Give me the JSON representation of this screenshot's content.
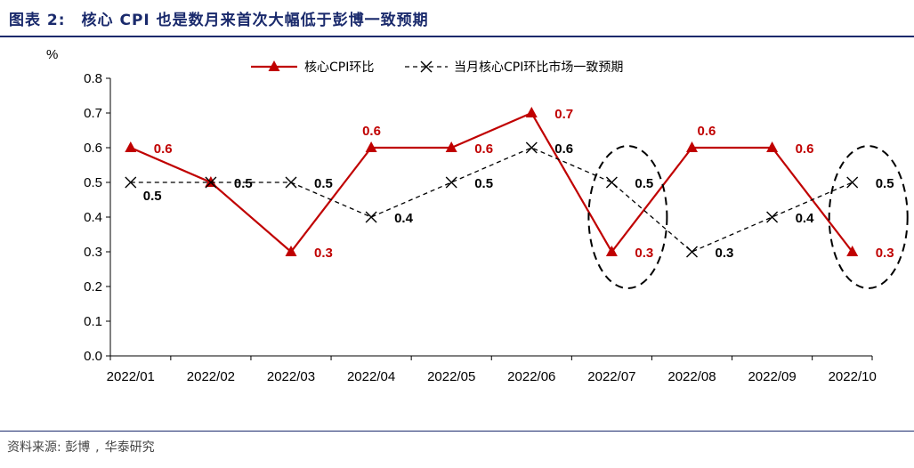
{
  "figure": {
    "number": "图表 2:",
    "title": "核心 CPI 也是数月来首次大幅低于彭博一致预期",
    "source_label": "资料来源:",
    "source_items": [
      "彭博",
      "华泰研究"
    ]
  },
  "colors": {
    "actual": "#c00000",
    "expected": "#000000",
    "header": "#1a2a6c",
    "ellipse": "#000000"
  },
  "chart_data": {
    "type": "line",
    "ylabel": "%",
    "ylim": [
      0,
      0.8
    ],
    "yticks": [
      "0.0",
      "0.1",
      "0.2",
      "0.3",
      "0.4",
      "0.5",
      "0.6",
      "0.7",
      "0.8"
    ],
    "categories": [
      "2022/01",
      "2022/02",
      "2022/03",
      "2022/04",
      "2022/05",
      "2022/06",
      "2022/07",
      "2022/08",
      "2022/09",
      "2022/10"
    ],
    "series": [
      {
        "name": "核心CPI环比",
        "values": [
          0.6,
          0.5,
          0.3,
          0.6,
          0.6,
          0.7,
          0.3,
          0.6,
          0.6,
          0.3
        ],
        "labels": [
          "0.6",
          "0.5",
          "0.3",
          "0.6",
          "0.6",
          "0.7",
          "0.3",
          "0.6",
          "0.6",
          "0.3"
        ],
        "style": "solid",
        "marker": "triangle"
      },
      {
        "name": "当月核心CPI环比市场一致预期",
        "values": [
          0.5,
          0.5,
          0.5,
          0.4,
          0.5,
          0.6,
          0.5,
          0.3,
          0.4,
          0.5
        ],
        "labels": [
          "0.5",
          "0.5",
          "0.5",
          "0.4",
          "0.5",
          "0.6",
          "0.5",
          "0.3",
          "0.4",
          "0.5"
        ],
        "style": "dashed",
        "marker": "x"
      }
    ],
    "highlighted_categories": [
      "2022/07",
      "2022/10"
    ],
    "legend_position": "top-center",
    "grid": false
  }
}
